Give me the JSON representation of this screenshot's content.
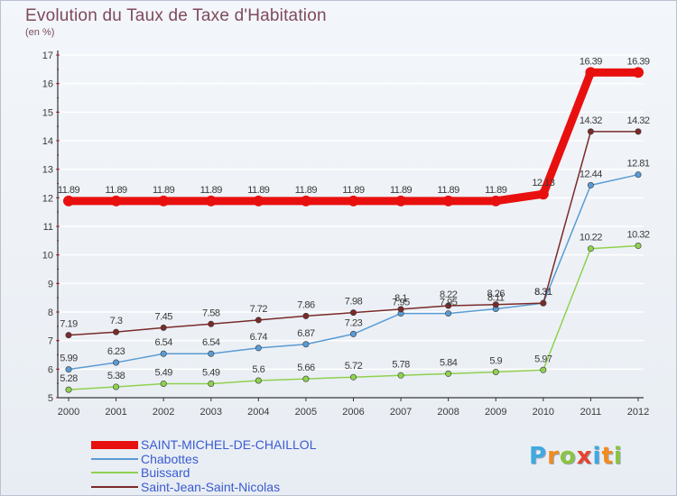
{
  "header": {
    "title": "Evolution du Taux de Taxe d'Habitation",
    "unit": "(en %)"
  },
  "logo": {
    "text": "Proxiti"
  },
  "colors": {
    "frame_border": "#b9c2cf",
    "axis": "#333333",
    "gridline": "#ffffff",
    "label_text": "#3a3a3a",
    "title_text": "#7f4a5b",
    "legend_text": "#3a5bd1"
  },
  "chart_data": {
    "type": "line",
    "title": "Evolution du Taux de Taxe d'Habitation",
    "subtitle": "(en %)",
    "xlabel": "",
    "ylabel": "",
    "x": [
      "2000",
      "2001",
      "2002",
      "2003",
      "2004",
      "2005",
      "2006",
      "2007",
      "2008",
      "2009",
      "2010",
      "2011",
      "2012"
    ],
    "ylim": [
      5,
      17
    ],
    "yticks": [
      5,
      6,
      7,
      8,
      9,
      10,
      11,
      12,
      13,
      14,
      15,
      16,
      17
    ],
    "grid": true,
    "legend_position": "bottom",
    "series": [
      {
        "name": "SAINT-MICHEL-DE-CHAILLOL",
        "color": "#e8100f",
        "width": 9,
        "values": [
          11.89,
          11.89,
          11.89,
          11.89,
          11.89,
          11.89,
          11.89,
          11.89,
          11.89,
          11.89,
          12.13,
          16.39,
          16.39
        ],
        "labels": [
          "11.89",
          "11.89",
          "11.89",
          "11.89",
          "11.89",
          "11.89",
          "11.89",
          "11.89",
          "11.89",
          "11.89",
          "12.13",
          "16.39",
          "16.39"
        ]
      },
      {
        "name": "Chabottes",
        "color": "#5a9bd4",
        "width": 1.5,
        "values": [
          5.99,
          6.23,
          6.54,
          6.54,
          6.74,
          6.87,
          7.23,
          7.95,
          7.95,
          8.11,
          8.31,
          12.44,
          12.81
        ],
        "labels": [
          "5.99",
          "6.23",
          "6.54",
          "6.54",
          "6.74",
          "6.87",
          "7.23",
          "7.95",
          "7.95",
          "8.11",
          "8.31",
          "12.44",
          "12.81"
        ]
      },
      {
        "name": "Buissard",
        "color": "#8fd14f",
        "width": 1.5,
        "values": [
          5.28,
          5.38,
          5.49,
          5.49,
          5.6,
          5.66,
          5.72,
          5.78,
          5.84,
          5.9,
          5.97,
          10.22,
          10.32
        ],
        "labels": [
          "5.28",
          "5.38",
          "5.49",
          "5.49",
          "5.6",
          "5.66",
          "5.72",
          "5.78",
          "5.84",
          "5.9",
          "5.97",
          "10.22",
          "10.32"
        ]
      },
      {
        "name": "Saint-Jean-Saint-Nicolas",
        "color": "#7a2a2a",
        "width": 1.5,
        "values": [
          7.19,
          7.3,
          7.45,
          7.58,
          7.72,
          7.86,
          7.98,
          8.1,
          8.22,
          8.26,
          8.31,
          14.32,
          14.32
        ],
        "labels": [
          "7.19",
          "7.3",
          "7.45",
          "7.58",
          "7.72",
          "7.86",
          "7.98",
          "8.1",
          "8.22",
          "8.26",
          "8.31",
          "14.32",
          "14.32"
        ]
      }
    ]
  }
}
